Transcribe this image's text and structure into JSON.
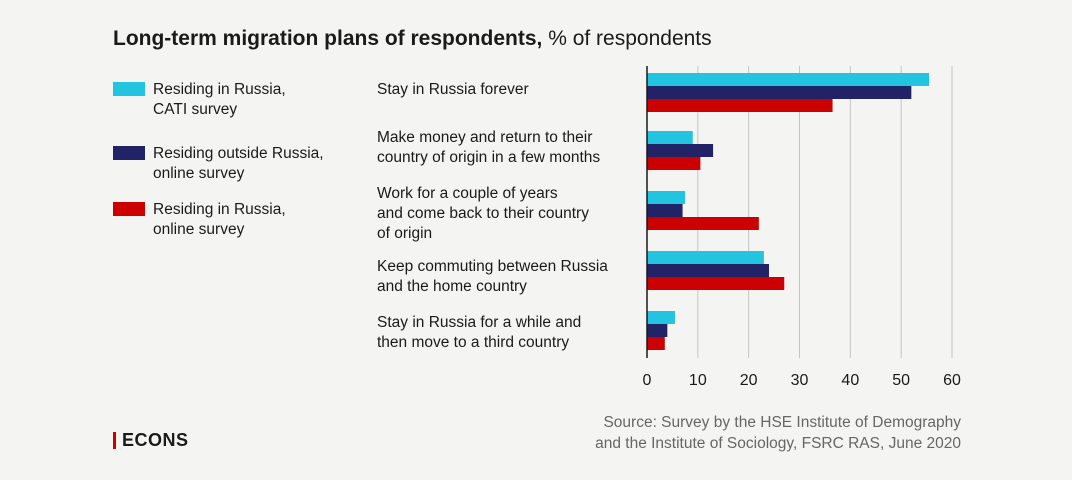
{
  "title": {
    "bold": "Long-term migration plans of respondents,",
    "rest": " % of respondents"
  },
  "source": {
    "line1": "Source: Survey by the HSE Institute of Demography",
    "line2": "and the Institute of Sociology, FSRC RAS, June 2020"
  },
  "logo": {
    "text": "ECONS"
  },
  "chart_data": {
    "type": "bar",
    "orientation": "horizontal",
    "title": "Long-term migration plans of respondents, % of respondents",
    "categories": [
      [
        "Stay in Russia forever"
      ],
      [
        "Make money and return to their",
        "country of origin in a few months"
      ],
      [
        "Work for a couple of years",
        "and come back to their country",
        "of origin"
      ],
      [
        "Keep commuting between Russia",
        "and the home country"
      ],
      [
        "Stay in Russia for a while and",
        "then move to a third country"
      ]
    ],
    "series": [
      {
        "name": "Residing in Russia, CATI survey",
        "legend_lines": [
          "Residing in Russia,",
          "CATI survey"
        ],
        "color": "#22c4e0",
        "values": [
          55.5,
          9,
          7.5,
          23,
          5.5
        ]
      },
      {
        "name": "Residing outside Russia, online survey",
        "legend_lines": [
          "Residing outside Russia,",
          "online survey"
        ],
        "color": "#222266",
        "values": [
          52,
          13,
          7,
          24,
          4
        ]
      },
      {
        "name": "Residing in Russia, online survey",
        "legend_lines": [
          "Residing in Russia,",
          "online survey"
        ],
        "color": "#cc0000",
        "values": [
          36.5,
          10.5,
          22,
          27,
          3.5
        ]
      }
    ],
    "xlim": [
      0,
      60
    ],
    "xticks": [
      0,
      10,
      20,
      30,
      40,
      50,
      60
    ],
    "grid": true,
    "legend_position": "left"
  }
}
